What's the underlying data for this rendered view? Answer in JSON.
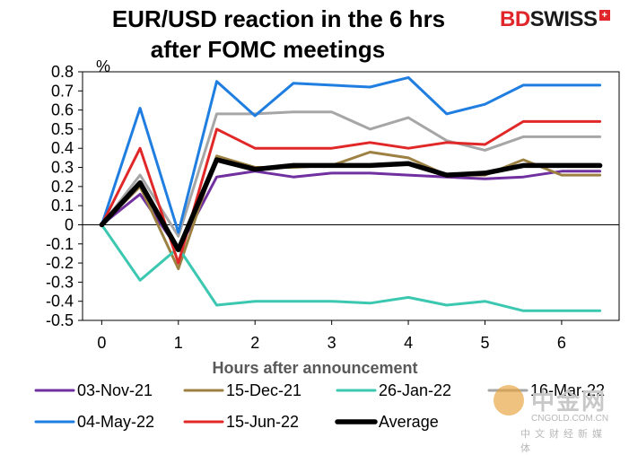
{
  "header": {
    "title_line1": "EUR/USD reaction in the 6 hrs",
    "title_line2": "after FOMC meetings",
    "brand_bd": "BD",
    "brand_swiss": "SWISS",
    "brand_mark": "+"
  },
  "watermark": {
    "name": "中金网",
    "url": "CNGOLD.COM.CN",
    "tagline": "中文财经新媒体"
  },
  "chart_data": {
    "type": "line",
    "title": "EUR/USD reaction in the 6 hrs after FOMC meetings",
    "xlabel": "Hours after announcement",
    "ylabel": "%",
    "x": [
      0,
      0.5,
      1,
      1.5,
      2,
      2.5,
      3,
      3.5,
      4,
      4.5,
      5,
      5.5,
      6,
      6.5
    ],
    "xlim": [
      -0.25,
      6.75
    ],
    "ylim": [
      -0.5,
      0.8
    ],
    "xticks": [
      0,
      1,
      2,
      3,
      4,
      5,
      6
    ],
    "yticks": [
      -0.5,
      -0.4,
      -0.3,
      -0.2,
      -0.1,
      0,
      0.1,
      0.2,
      0.3,
      0.4,
      0.5,
      0.6,
      0.7,
      0.8
    ],
    "ytick_labels": [
      "-0.5",
      "-0.4",
      "-0.3",
      "-0.2",
      "-0.1",
      "0",
      "0.1",
      "0.2",
      "0.3",
      "0.4",
      "0.5",
      "0.6",
      "0.7",
      "0.8"
    ],
    "grid": false,
    "series": [
      {
        "name": "03-Nov-21",
        "color": "#7030a0",
        "values": [
          0.0,
          0.16,
          -0.13,
          0.25,
          0.28,
          0.25,
          0.27,
          0.27,
          0.26,
          0.25,
          0.24,
          0.25,
          0.28,
          0.28
        ]
      },
      {
        "name": "15-Dec-21",
        "color": "#9c8143",
        "values": [
          0.0,
          0.2,
          -0.23,
          0.36,
          0.3,
          0.3,
          0.31,
          0.38,
          0.35,
          0.26,
          0.26,
          0.34,
          0.26,
          0.26
        ]
      },
      {
        "name": "26-Jan-22",
        "color": "#3cc8b0",
        "values": [
          0.0,
          -0.29,
          -0.12,
          -0.42,
          -0.4,
          -0.4,
          -0.4,
          -0.41,
          -0.38,
          -0.42,
          -0.4,
          -0.45,
          -0.45,
          -0.45
        ]
      },
      {
        "name": "16-Mar-22",
        "color": "#a6a6a6",
        "values": [
          0.0,
          0.26,
          -0.06,
          0.58,
          0.58,
          0.59,
          0.59,
          0.5,
          0.56,
          0.44,
          0.39,
          0.46,
          0.46,
          0.46
        ]
      },
      {
        "name": "04-May-22",
        "color": "#1f7ee0",
        "values": [
          0.0,
          0.61,
          -0.04,
          0.75,
          0.57,
          0.74,
          0.73,
          0.72,
          0.77,
          0.58,
          0.63,
          0.73,
          0.73,
          0.73
        ]
      },
      {
        "name": "15-Jun-22",
        "color": "#e02828",
        "values": [
          0.0,
          0.4,
          -0.2,
          0.5,
          0.4,
          0.4,
          0.4,
          0.43,
          0.4,
          0.43,
          0.42,
          0.54,
          0.54,
          0.54
        ]
      },
      {
        "name": "Average",
        "color": "#000000",
        "bold": true,
        "values": [
          0.0,
          0.22,
          -0.13,
          0.34,
          0.29,
          0.31,
          0.31,
          0.31,
          0.32,
          0.26,
          0.27,
          0.31,
          0.31,
          0.31
        ]
      }
    ],
    "legend": {
      "position": "bottom"
    }
  }
}
